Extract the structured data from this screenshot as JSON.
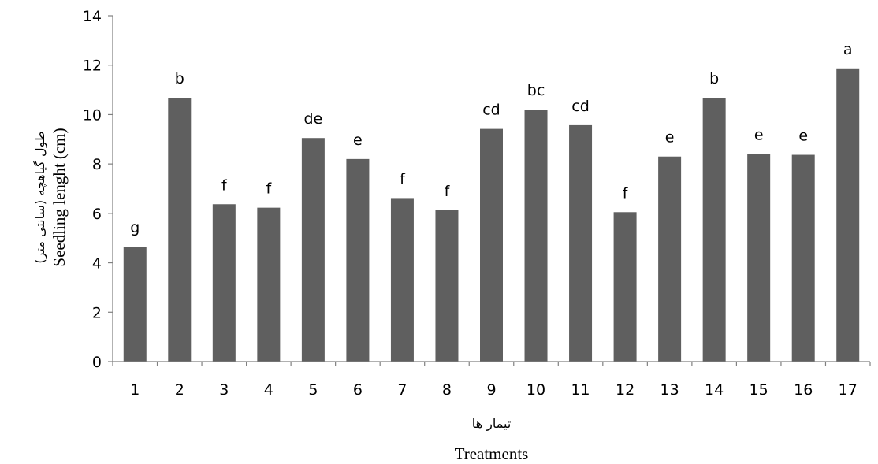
{
  "chart_data": {
    "type": "bar",
    "categories": [
      "1",
      "2",
      "3",
      "4",
      "5",
      "6",
      "7",
      "8",
      "9",
      "10",
      "11",
      "12",
      "13",
      "14",
      "15",
      "16",
      "17"
    ],
    "values": [
      4.65,
      10.68,
      6.37,
      6.23,
      9.05,
      8.2,
      6.62,
      6.13,
      9.42,
      10.2,
      9.57,
      6.05,
      8.3,
      10.68,
      8.4,
      8.37,
      11.87
    ],
    "data_labels": [
      "g",
      "b",
      "f",
      "f",
      "de",
      "e",
      "f",
      "f",
      "cd",
      "bc",
      "cd",
      "f",
      "e",
      "b",
      "e",
      "e",
      "a"
    ],
    "ylim": [
      0,
      14
    ],
    "yticks": [
      0,
      2,
      4,
      6,
      8,
      10,
      12,
      14
    ],
    "xlabel": "Treatments",
    "xlabel_fa": "تیمار ها",
    "ylabel": "Seedling lenght (cm)",
    "ylabel_fa": "طول گیاهچه (سانتی متر)",
    "bar_color": "#5f5f5f",
    "grid": false,
    "legend": "none"
  }
}
